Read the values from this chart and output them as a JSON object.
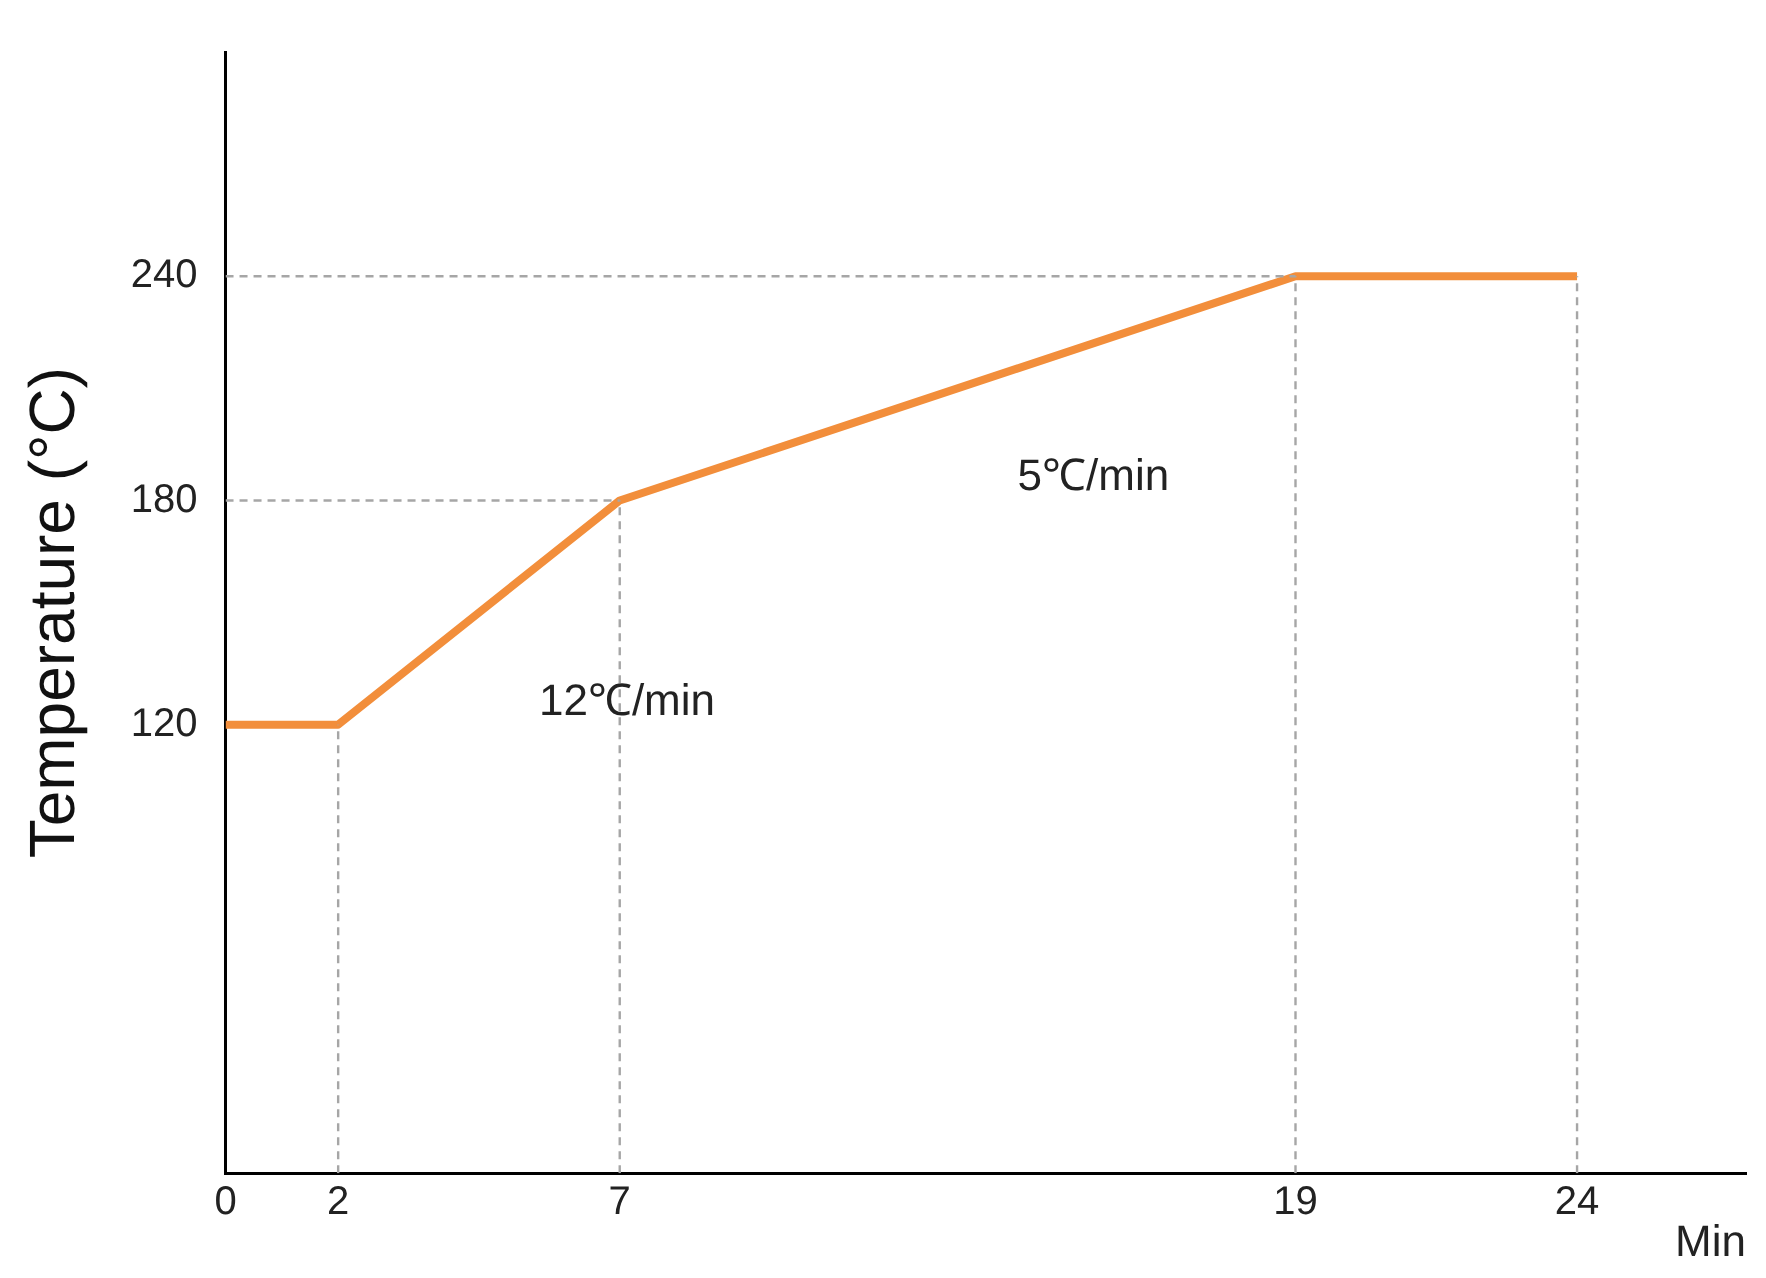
{
  "chart_data": {
    "type": "line",
    "ylabel": "Temperature (°C)",
    "xlabel": "Min",
    "xlim": [
      0,
      27
    ],
    "xticks": [
      0,
      2,
      7,
      19,
      24
    ],
    "ylim": [
      0,
      300
    ],
    "yticks": [
      120,
      180,
      240
    ],
    "grid": false,
    "legend": false,
    "marker": "none",
    "series": [
      {
        "type": "line",
        "color": "#a6a6a6",
        "line_style": "dashed",
        "x": [
          2,
          2
        ],
        "values": [
          0,
          120
        ]
      },
      {
        "type": "line",
        "color": "#a6a6a6",
        "line_style": "dashed",
        "x": [
          7,
          7
        ],
        "values": [
          0,
          180
        ]
      },
      {
        "type": "line",
        "color": "#a6a6a6",
        "line_style": "dashed",
        "x": [
          19,
          19
        ],
        "values": [
          0,
          240
        ]
      },
      {
        "type": "line",
        "color": "#a6a6a6",
        "line_style": "dashed",
        "x": [
          24,
          24
        ],
        "values": [
          0,
          240
        ]
      },
      {
        "type": "line",
        "color": "#a6a6a6",
        "line_style": "dashed",
        "x": [
          0,
          7
        ],
        "values": [
          180,
          180
        ]
      },
      {
        "type": "line",
        "color": "#a6a6a6",
        "line_style": "dashed",
        "x": [
          0,
          19
        ],
        "values": [
          240,
          240
        ]
      },
      {
        "type": "line",
        "color": "#f28e3b",
        "line_style": "solid",
        "x": [
          0,
          2,
          7,
          19,
          24
        ],
        "values": [
          120,
          120,
          180,
          240,
          240
        ]
      }
    ],
    "annotations": [
      "12℃/min",
      "5℃/min"
    ]
  }
}
